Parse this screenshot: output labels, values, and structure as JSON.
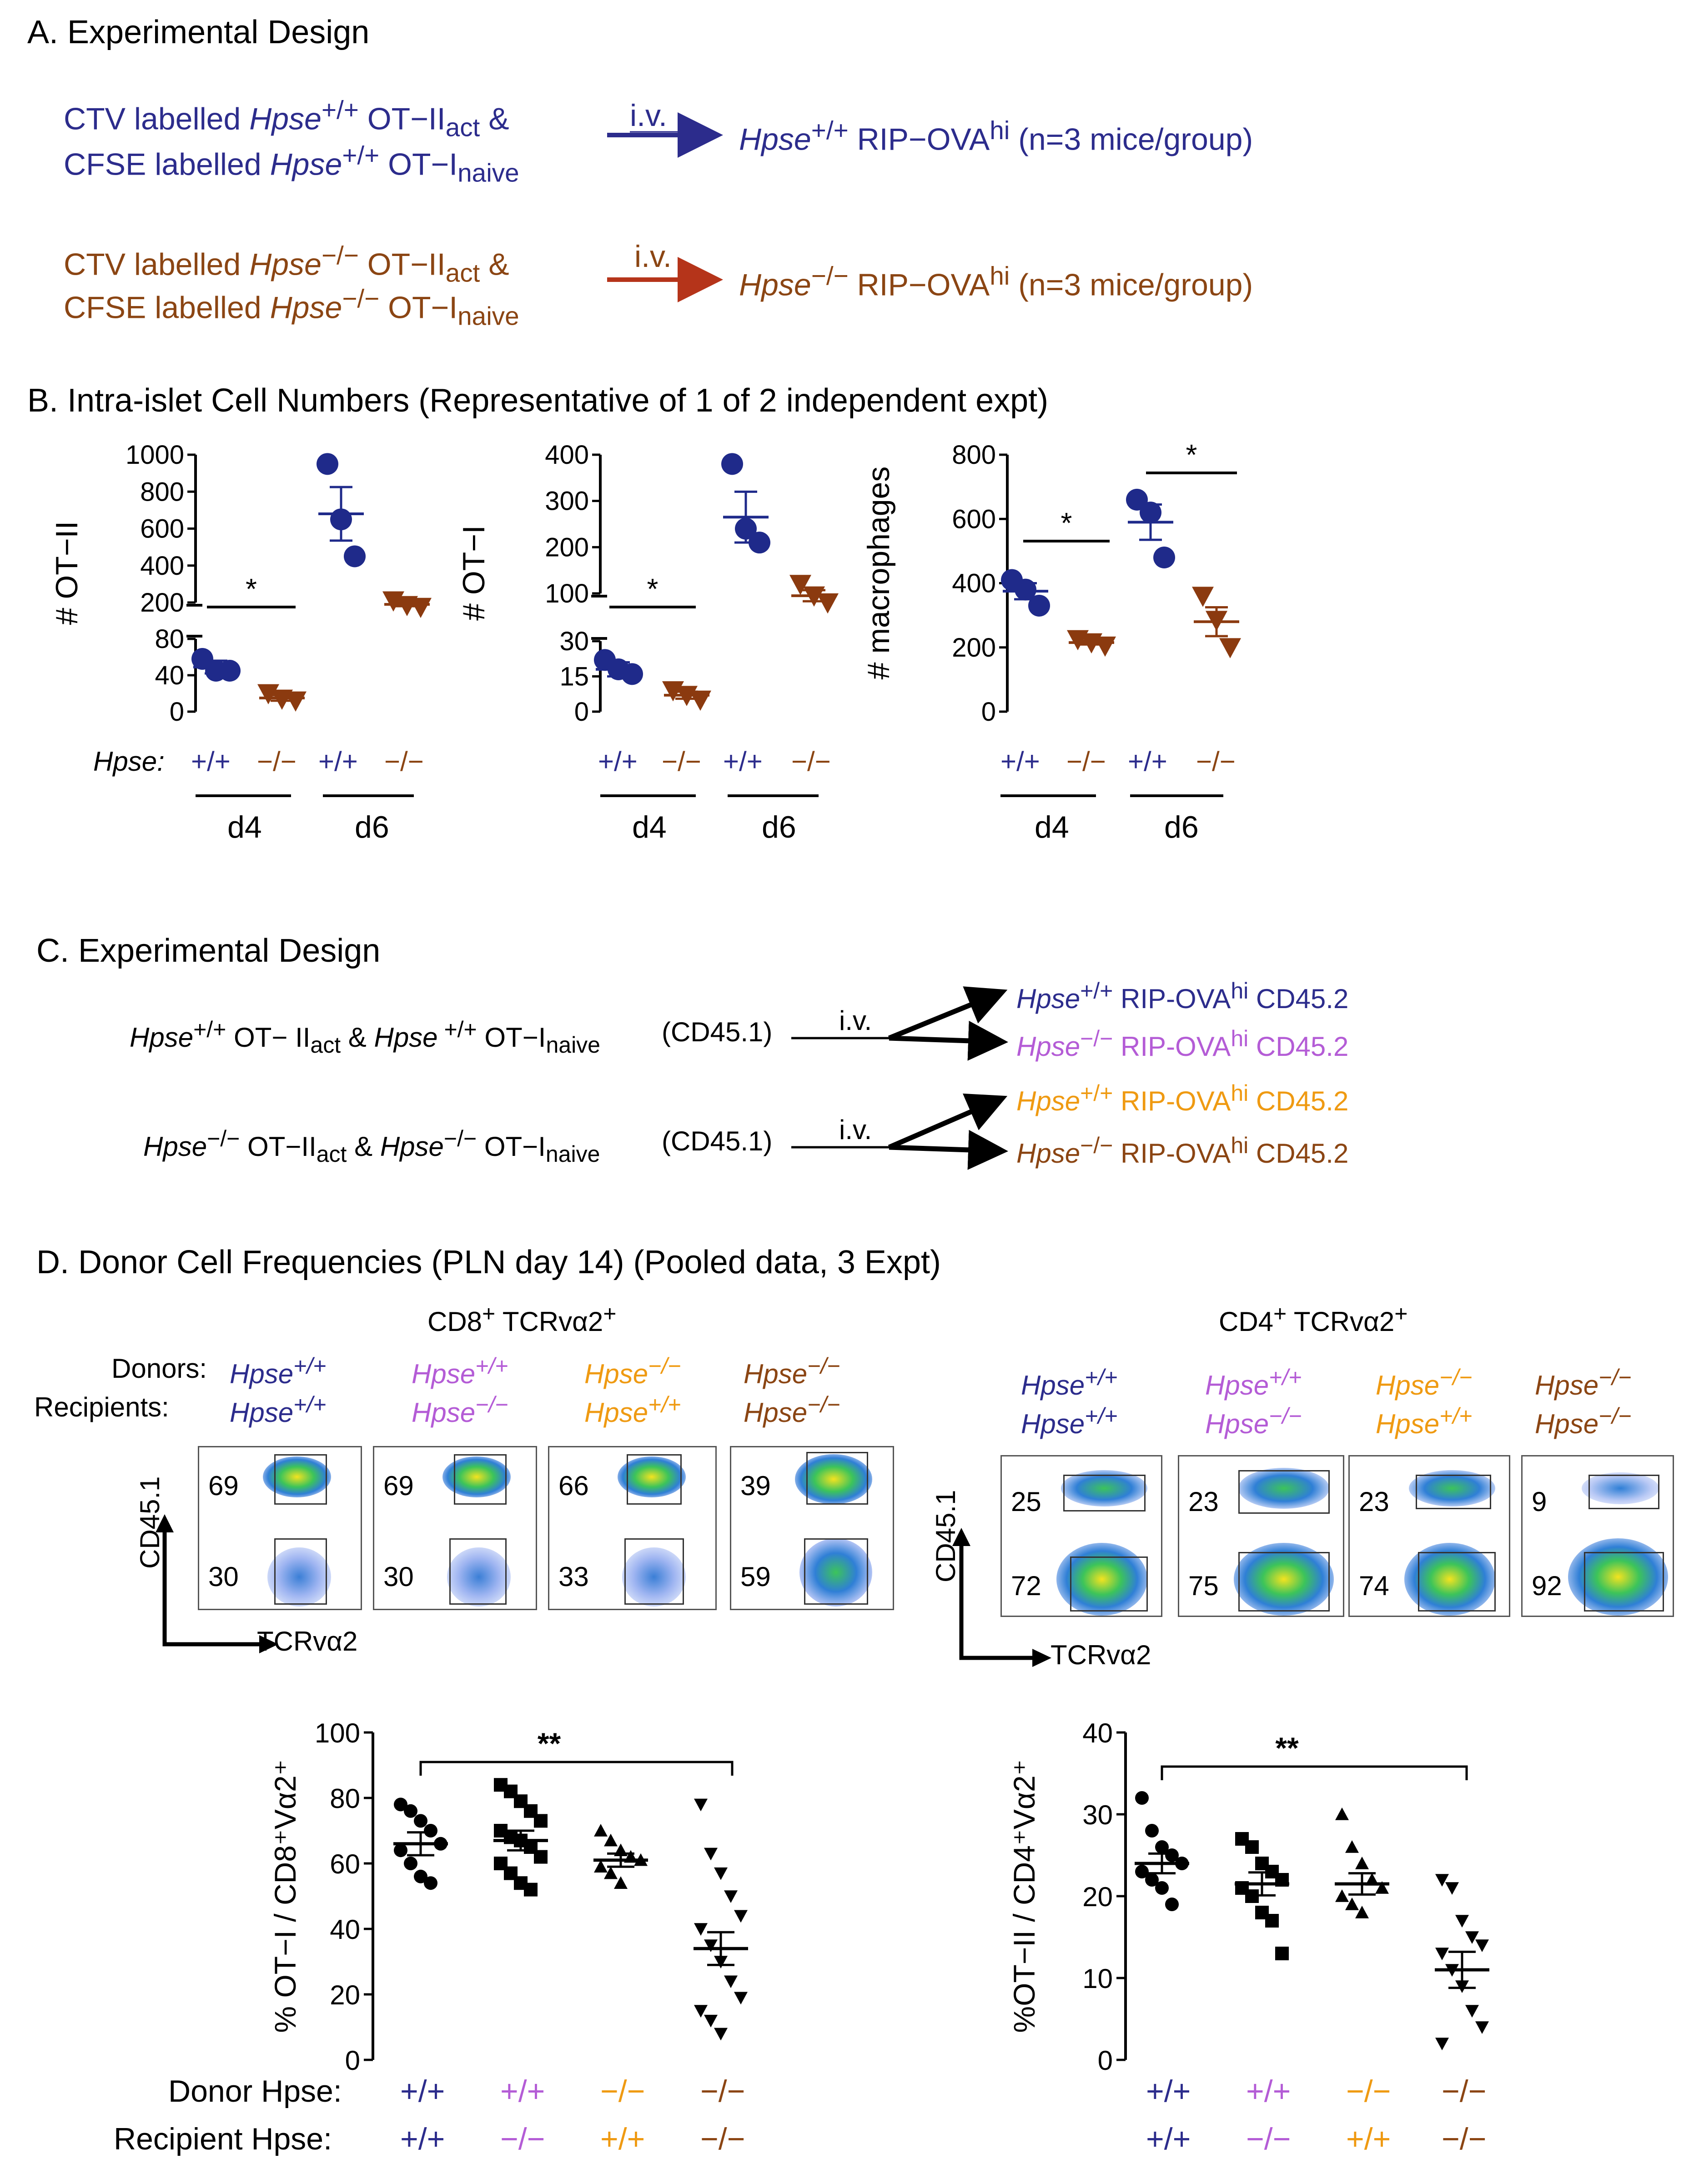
{
  "panelA": {
    "title": "A. Experimental Design",
    "row1": {
      "line1": {
        "pre": "CTV labelled ",
        "gene": "Hpse",
        "sup": "+/+",
        "cell": " OT−II",
        "sub": "act",
        "post": " &"
      },
      "line2": {
        "pre": "CFSE labelled ",
        "gene": "Hpse",
        "sup": "+/+",
        "cell": " OT−I",
        "sub": "naive"
      },
      "arrow_label": "i.v.",
      "target": {
        "gene": "Hpse",
        "sup": "+/+",
        "mid": " RIP−OVA",
        "sup2": "hi",
        "post": " (n=3 mice/group)"
      },
      "color": "#2c2c8c"
    },
    "row2": {
      "line1": {
        "pre": "CTV labelled ",
        "gene": "Hpse",
        "sup": "−/−",
        "cell": " OT−II",
        "sub": "act",
        "post": " &"
      },
      "line2": {
        "pre": "CFSE labelled ",
        "gene": "Hpse",
        "sup": "−/−",
        "cell": " OT−I",
        "sub": "naive"
      },
      "arrow_label": "i.v.",
      "target": {
        "gene": "Hpse",
        "sup": "−/−",
        "mid": " RIP−OVA",
        "sup2": "hi",
        "post": " (n=3 mice/group)"
      },
      "color": "#8b4513"
    }
  },
  "panelB": {
    "title": "B. Intra-islet Cell Numbers (Representative of 1 of 2 independent expt)",
    "hpse_label": "Hpse:",
    "genotypes": [
      "+/+",
      "−/−",
      "+/+",
      "−/−"
    ],
    "days": [
      "d4",
      "d6"
    ],
    "sig": "*"
  },
  "panelC": {
    "title": "C. Experimental Design",
    "donor1": {
      "gene": "Hpse",
      "sup": "+/+",
      "a": " OT− II",
      "sub1": "act",
      "amp": " & ",
      "gene2": "Hpse",
      "sup2": " +/+",
      "b": " OT−I",
      "sub2": "naive"
    },
    "donor2": {
      "gene": "Hpse",
      "sup": "−/−",
      "a": " OT−II",
      "sub1": "act",
      "amp": " & ",
      "gene2": "Hpse",
      "sup2": "−/−",
      "b": " OT−I",
      "sub2": "naive"
    },
    "cd451": "(CD45.1)",
    "iv": "i.v.",
    "recipients": [
      {
        "gene": "Hpse",
        "sup": "+/+",
        "mid": " RIP-OVA",
        "sup2": "hi",
        "post": " CD45.2",
        "color": "#2c2c8c"
      },
      {
        "gene": "Hpse",
        "sup": "−/−",
        "mid": "  RIP-OVA",
        "sup2": "hi",
        "post": " CD45.2",
        "color": "#b45cd6"
      },
      {
        "gene": "Hpse",
        "sup": "+/+",
        "mid": " RIP-OVA",
        "sup2": "hi",
        "post": " CD45.2",
        "color": "#ef9a12"
      },
      {
        "gene": "Hpse",
        "sup": "−/−",
        "mid": "  RIP-OVA",
        "sup2": "hi",
        "post": " CD45.2",
        "color": "#8b4513"
      }
    ]
  },
  "panelD": {
    "title": "D. Donor Cell Frequencies (PLN day 14) (Pooled data, 3 Expt)",
    "cd8_header": {
      "a": "CD8",
      "sa": "+",
      "b": " TCRvα2",
      "sb": "+"
    },
    "cd4_header": {
      "a": "CD4",
      "sa": "+",
      "b": " TCRvα2",
      "sb": "+"
    },
    "donors_label": "Donors:",
    "recipients_label": "Recipients:",
    "gene": "Hpse",
    "groups": [
      {
        "donor": "+/+",
        "recipient": "+/+",
        "color": "#2c2c8c"
      },
      {
        "donor": "+/+",
        "recipient": "−/−",
        "color": "#b45cd6"
      },
      {
        "donor": "−/−",
        "recipient": "+/+",
        "color": "#ef9a12"
      },
      {
        "donor": "−/−",
        "recipient": "−/−",
        "color": "#8b4513"
      }
    ],
    "flow_cd8": [
      {
        "top": "69",
        "bottom": "30"
      },
      {
        "top": "69",
        "bottom": "30"
      },
      {
        "top": "66",
        "bottom": "33"
      },
      {
        "top": "39",
        "bottom": "59"
      }
    ],
    "flow_cd4": [
      {
        "top": "25",
        "bottom": "72"
      },
      {
        "top": "23",
        "bottom": "75"
      },
      {
        "top": "23",
        "bottom": "74"
      },
      {
        "top": "9",
        "bottom": "92"
      }
    ],
    "y_axis_flow": "CD45.1",
    "x_axis_flow": "TCRvα2",
    "donor_hpse_label": "Donor Hpse:",
    "recipient_hpse_label": "Recipient Hpse:",
    "sig": "**"
  },
  "chart_data": [
    {
      "type": "scatter",
      "title": "# OT−II",
      "ylabel": "# OT−II",
      "y_axis": "broken",
      "ylim_lower": [
        0,
        80
      ],
      "ylim_upper": [
        200,
        1000
      ],
      "ticks_lower": [
        "0",
        "40",
        "80"
      ],
      "ticks_upper": [
        "200",
        "400",
        "600",
        "800",
        "1000"
      ],
      "groups": [
        {
          "day": "d4",
          "genotype": "+/+",
          "values": [
            58,
            45,
            45
          ],
          "mean": 49,
          "sem": 7,
          "marker": "circle",
          "color": "#1f2a8a"
        },
        {
          "day": "d4",
          "genotype": "−/−",
          "values": [
            20,
            14,
            12
          ],
          "mean": 15,
          "sem": 3,
          "marker": "triangle-down",
          "color": "#8b3a0f"
        },
        {
          "day": "d6",
          "genotype": "+/+",
          "values": [
            950,
            650,
            450
          ],
          "mean": 680,
          "sem": 145,
          "marker": "circle",
          "color": "#1f2a8a"
        },
        {
          "day": "d6",
          "genotype": "−/−",
          "values": [
            210,
            185,
            175
          ],
          "mean": 190,
          "sem": 10,
          "marker": "triangle-down",
          "color": "#8b3a0f"
        }
      ],
      "significance": [
        {
          "between": [
            "d4 +/+",
            "d4 −/−"
          ],
          "label": "*"
        }
      ]
    },
    {
      "type": "scatter",
      "title": "# OT−I",
      "ylabel": "# OT−I",
      "y_axis": "broken",
      "ylim_lower": [
        0,
        30
      ],
      "ylim_upper": [
        100,
        400
      ],
      "ticks_lower": [
        "0",
        "15",
        "30"
      ],
      "ticks_upper": [
        "100",
        "200",
        "300",
        "400"
      ],
      "groups": [
        {
          "day": "d4",
          "genotype": "+/+",
          "values": [
            22,
            18,
            16
          ],
          "mean": 18,
          "sem": 3,
          "marker": "circle",
          "color": "#1f2a8a"
        },
        {
          "day": "d4",
          "genotype": "−/−",
          "values": [
            9,
            7,
            5
          ],
          "mean": 7,
          "sem": 1.5,
          "marker": "triangle-down",
          "color": "#8b3a0f"
        },
        {
          "day": "d6",
          "genotype": "+/+",
          "values": [
            380,
            240,
            210
          ],
          "mean": 265,
          "sem": 55,
          "marker": "circle",
          "color": "#1f2a8a"
        },
        {
          "day": "d6",
          "genotype": "−/−",
          "values": [
            120,
            95,
            80
          ],
          "mean": 95,
          "sem": 12,
          "marker": "triangle-down",
          "color": "#8b3a0f"
        }
      ],
      "significance": [
        {
          "between": [
            "d4 +/+",
            "d4 −/−"
          ],
          "label": "*"
        }
      ]
    },
    {
      "type": "scatter",
      "title": "# macrophages",
      "ylabel": "# macrophages",
      "ylim": [
        0,
        800
      ],
      "ticks": [
        "0",
        "200",
        "400",
        "600",
        "800"
      ],
      "groups": [
        {
          "day": "d4",
          "genotype": "+/+",
          "values": [
            410,
            380,
            330
          ],
          "mean": 375,
          "sem": 25,
          "marker": "circle",
          "color": "#1f2a8a"
        },
        {
          "day": "d4",
          "genotype": "−/−",
          "values": [
            225,
            215,
            205
          ],
          "mean": 215,
          "sem": 6,
          "marker": "triangle-down",
          "color": "#8b3a0f"
        },
        {
          "day": "d6",
          "genotype": "+/+",
          "values": [
            660,
            620,
            480
          ],
          "mean": 590,
          "sem": 55,
          "marker": "circle",
          "color": "#1f2a8a"
        },
        {
          "day": "d6",
          "genotype": "−/−",
          "values": [
            360,
            285,
            200
          ],
          "mean": 280,
          "sem": 45,
          "marker": "triangle-down",
          "color": "#8b3a0f"
        }
      ],
      "significance": [
        {
          "between": [
            "d4 +/+",
            "d4 −/−"
          ],
          "label": "*"
        },
        {
          "between": [
            "d6 +/+",
            "d6 −/−"
          ],
          "label": "*"
        }
      ]
    },
    {
      "type": "scatter",
      "title": "% OT−I / CD8⁺Vα2⁺",
      "ylabel": "% OT−I / CD8⁺Vα2⁺",
      "ylim": [
        0,
        100
      ],
      "ticks": [
        "0",
        "20",
        "40",
        "60",
        "80",
        "100"
      ],
      "groups": [
        {
          "donor": "+/+",
          "recipient": "+/+",
          "marker": "circle",
          "mean": 66,
          "sem": 3.5,
          "values": [
            78,
            76,
            73,
            70,
            66,
            64,
            60,
            56,
            54
          ]
        },
        {
          "donor": "+/+",
          "recipient": "−/−",
          "marker": "square",
          "mean": 67,
          "sem": 3,
          "values": [
            84,
            82,
            79,
            76,
            73,
            70,
            68,
            67,
            65,
            62,
            60,
            57,
            54,
            52
          ]
        },
        {
          "donor": "−/−",
          "recipient": "+/+",
          "marker": "triangle-up",
          "mean": 61,
          "sem": 2,
          "values": [
            70,
            67,
            64,
            62,
            61,
            59,
            57,
            54
          ]
        },
        {
          "donor": "−/−",
          "recipient": "−/−",
          "marker": "triangle-down",
          "mean": 34,
          "sem": 5,
          "values": [
            78,
            63,
            57,
            50,
            44,
            40,
            35,
            30,
            24,
            19,
            15,
            12,
            8
          ]
        }
      ],
      "significance": [
        {
          "between": [
            "+/+ +/+",
            "−/− −/−"
          ],
          "label": "**"
        }
      ]
    },
    {
      "type": "scatter",
      "title": "%OT−II / CD4⁺Vα2⁺",
      "ylabel": "%OT−II / CD4⁺Vα2⁺",
      "ylim": [
        0,
        40
      ],
      "ticks": [
        "0",
        "10",
        "20",
        "30",
        "40"
      ],
      "groups": [
        {
          "donor": "+/+",
          "recipient": "+/+",
          "marker": "circle",
          "mean": 24,
          "sem": 1.2,
          "values": [
            32,
            28,
            26,
            25,
            24,
            23,
            22,
            21,
            19
          ]
        },
        {
          "donor": "+/+",
          "recipient": "−/−",
          "marker": "square",
          "mean": 21.5,
          "sem": 1.4,
          "values": [
            27,
            26,
            24,
            23,
            22,
            21,
            20,
            18,
            17,
            13
          ]
        },
        {
          "donor": "−/−",
          "recipient": "+/+",
          "marker": "triangle-up",
          "mean": 21.5,
          "sem": 1.3,
          "values": [
            30,
            26,
            24,
            22,
            21,
            20,
            19,
            18
          ]
        },
        {
          "donor": "−/−",
          "recipient": "−/−",
          "marker": "triangle-down",
          "mean": 11,
          "sem": 2.2,
          "values": [
            22,
            21,
            17,
            15,
            14,
            13,
            11,
            9,
            6,
            4,
            2
          ]
        }
      ],
      "significance": [
        {
          "between": [
            "+/+ +/+",
            "−/− −/−"
          ],
          "label": "**"
        }
      ]
    }
  ]
}
